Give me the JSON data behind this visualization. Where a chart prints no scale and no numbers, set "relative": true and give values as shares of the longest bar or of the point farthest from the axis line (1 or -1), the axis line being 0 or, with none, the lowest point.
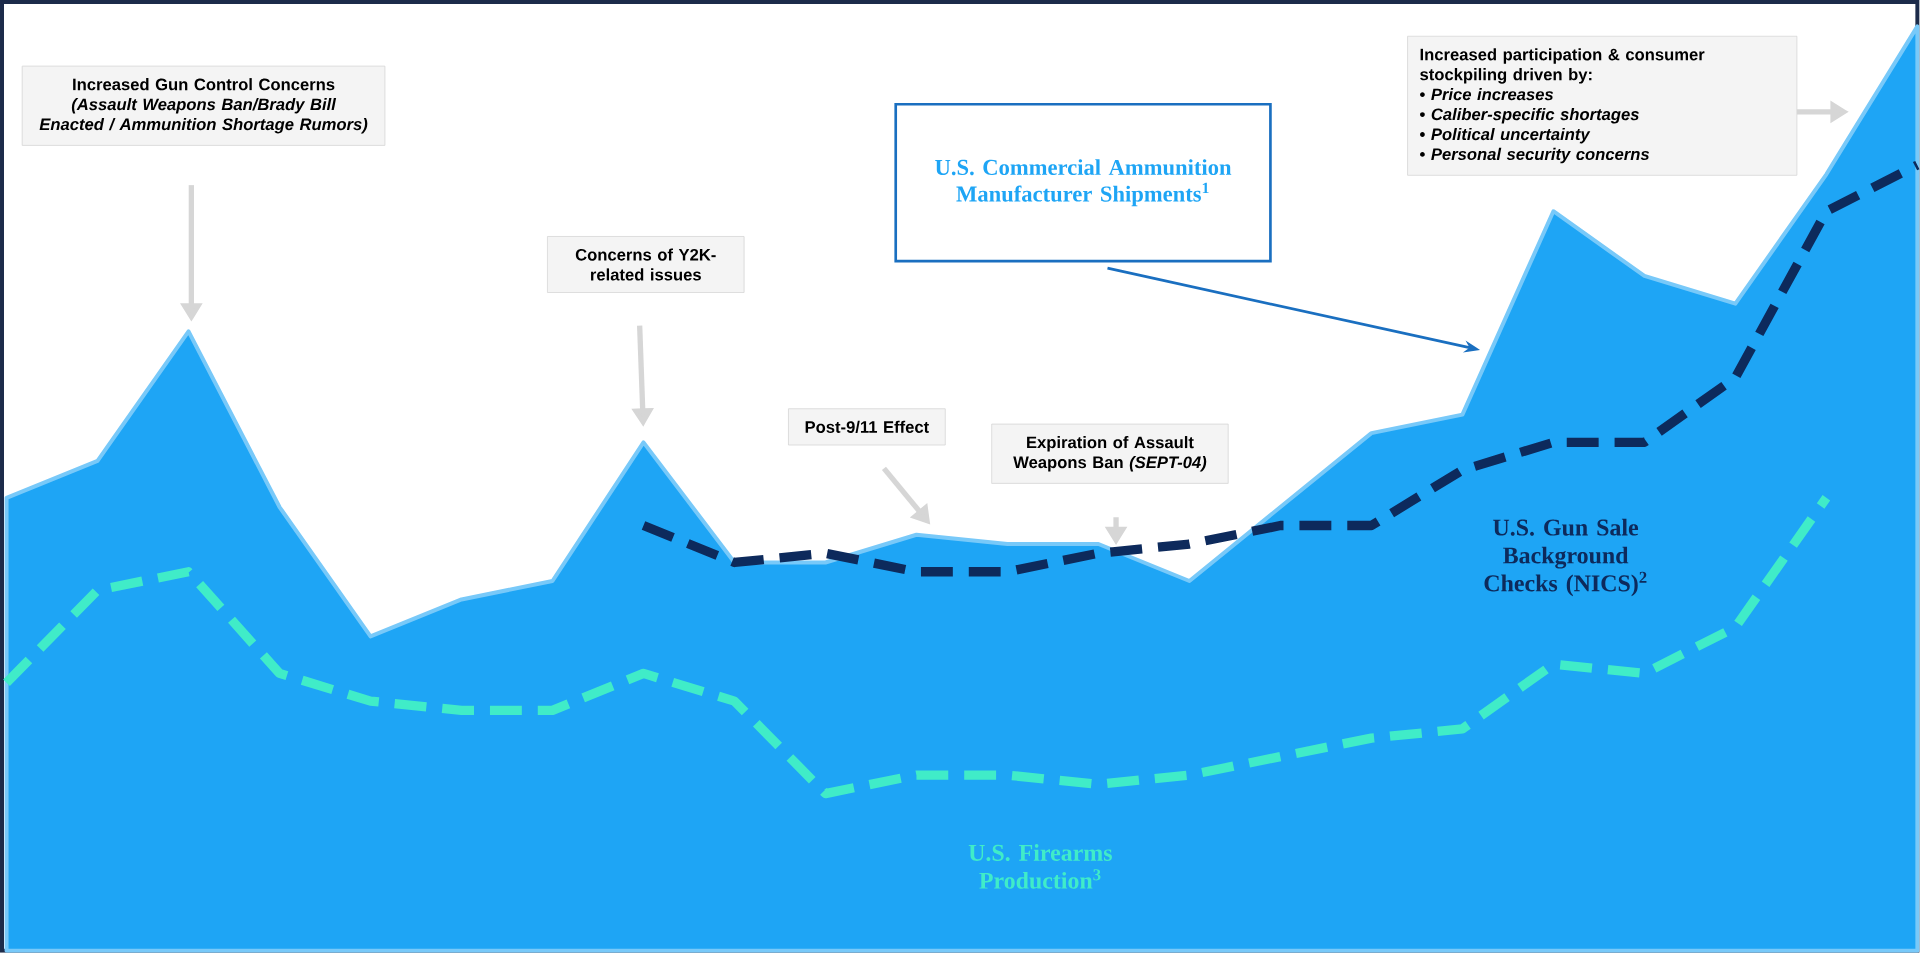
{
  "chart_data": {
    "type": "area",
    "relative": true,
    "legend": false,
    "categories": [
      null,
      null,
      null,
      null,
      null,
      null,
      null,
      null,
      null,
      null,
      null,
      null,
      null,
      null,
      null,
      null,
      null,
      null,
      null,
      null,
      null,
      null
    ],
    "series": [
      {
        "name": "U.S. Commercial Ammunition Manufacturer Shipments$^{1}$",
        "color": "#1ea5f5",
        "values": [
          0.49,
          0.53,
          0.67,
          0.48,
          0.34,
          0.38,
          0.4,
          0.55,
          0.42,
          0.42,
          0.45,
          0.44,
          0.44,
          0.4,
          0.48,
          0.56,
          0.58,
          0.8,
          0.73,
          0.7,
          0.84,
          1.0
        ]
      },
      {
        "name": "U.S. Gun Sale Background Checks (NICS)$^{2}$",
        "type": "line",
        "line_style": "dashed",
        "color": "#0d2a5c",
        "values": [
          null,
          null,
          null,
          null,
          null,
          null,
          null,
          0.46,
          0.42,
          0.43,
          0.41,
          0.41,
          0.43,
          0.44,
          0.46,
          0.46,
          0.52,
          0.55,
          0.55,
          0.62,
          0.8,
          0.85
        ]
      },
      {
        "name": "U.S. Firearms Production$^{3}$",
        "type": "line",
        "line_style": "dashed",
        "color": "#40ecc8",
        "values": [
          0.29,
          0.39,
          0.41,
          0.3,
          0.27,
          0.26,
          0.26,
          0.3,
          0.27,
          0.17,
          0.19,
          0.19,
          0.18,
          0.19,
          0.21,
          0.23,
          0.24,
          0.31,
          0.3,
          0.35,
          0.49,
          null
        ]
      }
    ],
    "annotations": [
      "Increased Gun Control Concerns *(Assault Weapons Ban/Brady Bill Enacted / Ammunition Shortage Rumors)*",
      "Concerns of Y2K-related issues",
      "Post-9/11 Effect",
      "Expiration of Assault Weapons Ban *(SEPT-04)*",
      "Increased participation & consumer stockpiling driven by:",
      "•  *Price increases*",
      "•  *Caliber-specific shortages*",
      "•  *Political uncertainty*",
      "•  *Personal security concerns*"
    ]
  }
}
